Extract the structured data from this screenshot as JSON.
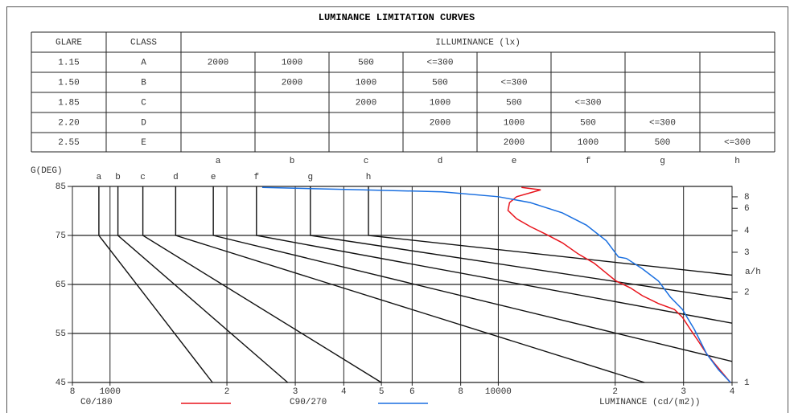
{
  "title": "LUMINANCE LIMITATION CURVES",
  "table": {
    "header": [
      "GLARE",
      "CLASS",
      "ILLUMINANCE (lx)"
    ],
    "rows": [
      [
        "1.15",
        "A",
        "2000",
        "1000",
        "500",
        "<=300",
        "",
        "",
        "",
        ""
      ],
      [
        "1.50",
        "B",
        "",
        "2000",
        "1000",
        "500",
        "<=300",
        "",
        "",
        ""
      ],
      [
        "1.85",
        "C",
        "",
        "",
        "2000",
        "1000",
        "500",
        "<=300",
        "",
        ""
      ],
      [
        "2.20",
        "D",
        "",
        "",
        "",
        "2000",
        "1000",
        "500",
        "<=300",
        ""
      ],
      [
        "2.55",
        "E",
        "",
        "",
        "",
        "",
        "2000",
        "1000",
        "500",
        "<=300"
      ]
    ],
    "column_letters": [
      "a",
      "b",
      "c",
      "d",
      "e",
      "f",
      "g",
      "h"
    ]
  },
  "chart_data": {
    "type": "line",
    "ylabel": "G(DEG)",
    "xlabel": "LUMINANCE (cd/(m2))",
    "xscale": "log",
    "xlim": [
      800,
      40000
    ],
    "xticks": [
      {
        "value": 800,
        "label": "8"
      },
      1000,
      {
        "value": 2000,
        "label": "2"
      },
      {
        "value": 3000,
        "label": "3"
      },
      {
        "value": 4000,
        "label": "4"
      },
      {
        "value": 5000,
        "label": "5"
      },
      {
        "value": 6000,
        "label": "6"
      },
      {
        "value": 8000,
        "label": "8"
      },
      10000,
      {
        "value": 20000,
        "label": "2"
      },
      {
        "value": 30000,
        "label": "3"
      },
      {
        "value": 40000,
        "label": "4"
      }
    ],
    "ylim": [
      45,
      85
    ],
    "yticks": [
      45,
      55,
      65,
      75,
      85
    ],
    "y2label": "a/h",
    "y2scale": "arctan",
    "y2ticks": [
      8,
      6,
      4,
      3,
      2,
      1
    ],
    "grid": true,
    "curves": [
      {
        "name": "a",
        "x": [
          936,
          936,
          1836
        ],
        "y": [
          85,
          75,
          45
        ]
      },
      {
        "name": "b",
        "x": [
          1048,
          1048,
          2868
        ],
        "y": [
          85,
          75,
          45
        ]
      },
      {
        "name": "c",
        "x": [
          1215,
          1215,
          4996
        ],
        "y": [
          85,
          75,
          45
        ]
      },
      {
        "name": "d",
        "x": [
          1476,
          1476,
          23800
        ],
        "y": [
          85,
          75,
          45
        ]
      },
      {
        "name": "e",
        "x": [
          1845,
          1845,
          40000
        ],
        "y": [
          85,
          75,
          49.3
        ]
      },
      {
        "name": "f",
        "x": [
          2383,
          2383,
          40000
        ],
        "y": [
          85,
          75,
          57.1
        ]
      },
      {
        "name": "g",
        "x": [
          3281,
          3281,
          40000
        ],
        "y": [
          85,
          75,
          62.0
        ]
      },
      {
        "name": "h",
        "x": [
          4630,
          4630,
          40000
        ],
        "y": [
          85,
          75,
          66.9
        ]
      }
    ],
    "series": [
      {
        "name": "C0/180",
        "color": "#e8141c",
        "x": [
          11475,
          12860,
          11150,
          10690,
          10590,
          11150,
          12090,
          13300,
          14620,
          16080,
          17680,
          18980,
          20100,
          21890,
          23500,
          25850,
          28420,
          29800,
          31250,
          32770,
          34370,
          36030,
          39620
        ],
        "values": [
          84.8,
          84.3,
          82.9,
          81.7,
          80.1,
          78.4,
          76.8,
          75.2,
          73.5,
          71.2,
          69.3,
          67.3,
          65.7,
          64.3,
          62.7,
          61.1,
          59.9,
          58.3,
          55.8,
          53.4,
          50.9,
          48.9,
          45
        ]
      },
      {
        "name": "C90/270",
        "color": "#1a6fe0",
        "x": [
          2466,
          4461,
          7172,
          10000,
          12090,
          14620,
          16860,
          18980,
          20390,
          21380,
          23500,
          25850,
          27760,
          29800,
          32000,
          34370,
          36900,
          39620
        ],
        "values": [
          84.8,
          84.3,
          83.9,
          82.9,
          81.7,
          79.6,
          77.1,
          73.9,
          70.6,
          70.3,
          68.2,
          65.7,
          62.4,
          59.9,
          55.8,
          50.9,
          47.6,
          45
        ]
      }
    ]
  }
}
